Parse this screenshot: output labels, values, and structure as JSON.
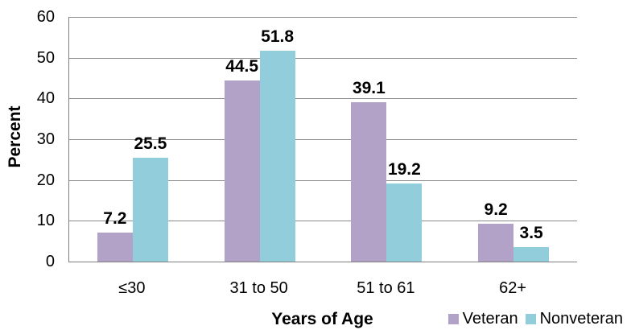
{
  "chart_data": {
    "type": "bar",
    "title": "",
    "categories": [
      "≤30",
      "31 to 50",
      "51 to 61",
      "62+"
    ],
    "series": [
      {
        "name": "Veteran",
        "color": "#B2A2C7",
        "values": [
          7.2,
          44.5,
          39.1,
          9.2
        ]
      },
      {
        "name": "Nonveteran",
        "color": "#92CDDC",
        "values": [
          25.5,
          51.8,
          19.2,
          3.5
        ]
      }
    ],
    "xlabel": "Years of Age",
    "ylabel": "Percent",
    "ylim": [
      0,
      60
    ],
    "yticks": [
      0,
      10,
      20,
      30,
      40,
      50,
      60
    ],
    "grid": true,
    "gridline_color": "#8A8A8A",
    "axis_color": "#7F7F7F",
    "legend_position": "bottom-right",
    "value_labels": "outside-end, bold, one decimal"
  }
}
